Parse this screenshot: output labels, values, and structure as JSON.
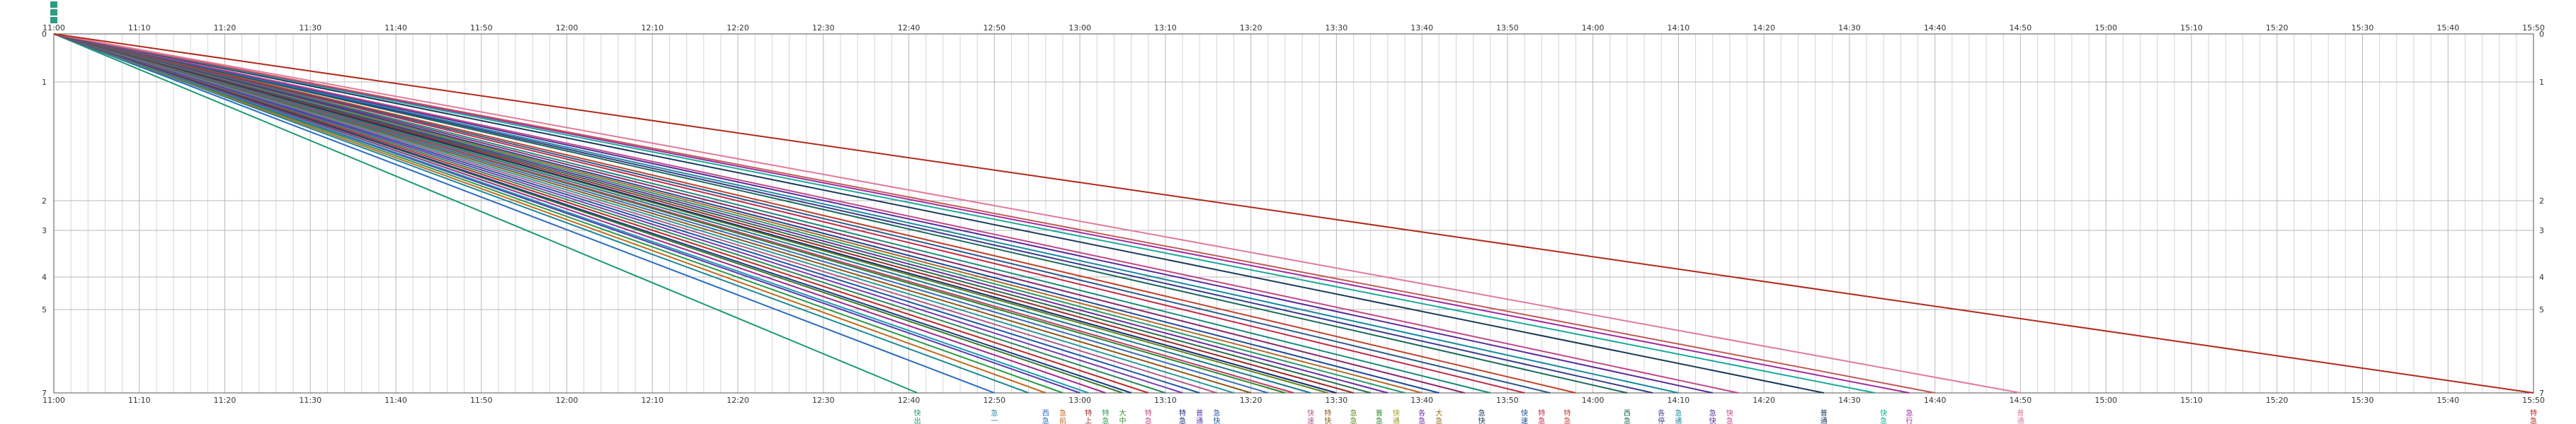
{
  "chart_data": {
    "type": "line",
    "title": "",
    "xlabel": "",
    "ylabel": "",
    "x_ticks": [
      "11:00",
      "11:10",
      "11:20",
      "11:30",
      "11:40",
      "11:50",
      "12:00",
      "12:10",
      "12:20",
      "12:30",
      "12:40",
      "12:50",
      "13:00",
      "13:10",
      "13:20",
      "13:30",
      "13:40",
      "13:50",
      "14:00",
      "14:10",
      "14:20",
      "14:30",
      "14:40",
      "14:50",
      "15:00",
      "15:10",
      "15:20",
      "15:30",
      "15:40",
      "15:50"
    ],
    "y_ticks": [
      "0",
      "1",
      "2",
      "3",
      "4",
      "5",
      "7"
    ],
    "xlim": [
      "11:00",
      "15:50"
    ],
    "grid": true,
    "start_marker_color": "#2e9c82",
    "series": [
      {
        "x": [
          "11:00",
          "12:41"
        ],
        "y": [
          0,
          7
        ],
        "color": "#1a9a70"
      },
      {
        "x": [
          "11:00",
          "12:50"
        ],
        "y": [
          0,
          7
        ],
        "color": "#2a6cc0"
      },
      {
        "x": [
          "11:00",
          "12:54"
        ],
        "y": [
          0,
          7
        ],
        "color": "#1a8a9a"
      },
      {
        "x": [
          "11:00",
          "12:56"
        ],
        "y": [
          0,
          7
        ],
        "color": "#c06a20"
      },
      {
        "x": [
          "11:00",
          "12:58"
        ],
        "y": [
          0,
          7
        ],
        "color": "#2a9a4a"
      },
      {
        "x": [
          "11:00",
          "13:00"
        ],
        "y": [
          0,
          7
        ],
        "color": "#5a3ab0"
      },
      {
        "x": [
          "11:00",
          "13:01"
        ],
        "y": [
          0,
          7
        ],
        "color": "#1a9ab0"
      },
      {
        "x": [
          "11:00",
          "13:03"
        ],
        "y": [
          0,
          7
        ],
        "color": "#a02a8a"
      },
      {
        "x": [
          "11:00",
          "13:05"
        ],
        "y": [
          0,
          7
        ],
        "color": "#3a7a2a"
      },
      {
        "x": [
          "11:00",
          "13:06"
        ],
        "y": [
          0,
          7
        ],
        "color": "#1a3a8a"
      },
      {
        "x": [
          "11:00",
          "13:08"
        ],
        "y": [
          0,
          7
        ],
        "color": "#c02a2a"
      },
      {
        "x": [
          "11:00",
          "13:10"
        ],
        "y": [
          0,
          7
        ],
        "color": "#2a8a5a"
      },
      {
        "x": [
          "11:00",
          "13:12"
        ],
        "y": [
          0,
          7
        ],
        "color": "#7a3ab0"
      },
      {
        "x": [
          "11:00",
          "13:14"
        ],
        "y": [
          0,
          7
        ],
        "color": "#1a5aa0"
      },
      {
        "x": [
          "11:00",
          "13:16"
        ],
        "y": [
          0,
          7
        ],
        "color": "#b05a8a"
      },
      {
        "x": [
          "11:00",
          "13:18"
        ],
        "y": [
          0,
          7
        ],
        "color": "#2a9a9a"
      },
      {
        "x": [
          "11:00",
          "13:20"
        ],
        "y": [
          0,
          7
        ],
        "color": "#8a5a1a"
      },
      {
        "x": [
          "11:00",
          "13:22"
        ],
        "y": [
          0,
          7
        ],
        "color": "#3a6aba"
      },
      {
        "x": [
          "11:00",
          "13:24"
        ],
        "y": [
          0,
          7
        ],
        "color": "#2a8a2a"
      },
      {
        "x": [
          "11:00",
          "13:25"
        ],
        "y": [
          0,
          7
        ],
        "color": "#c03a6a"
      },
      {
        "x": [
          "11:00",
          "13:27"
        ],
        "y": [
          0,
          7
        ],
        "color": "#1a7a8a"
      },
      {
        "x": [
          "11:00",
          "13:29"
        ],
        "y": [
          0,
          7
        ],
        "color": "#5a8a1a"
      },
      {
        "x": [
          "11:00",
          "13:30"
        ],
        "y": [
          0,
          7
        ],
        "color": "#1a2a7a"
      },
      {
        "x": [
          "11:00",
          "13:32"
        ],
        "y": [
          0,
          7
        ],
        "color": "#9a2a2a"
      },
      {
        "x": [
          "11:00",
          "13:34"
        ],
        "y": [
          0,
          7
        ],
        "color": "#2a6a4a"
      },
      {
        "x": [
          "11:00",
          "13:36"
        ],
        "y": [
          0,
          7
        ],
        "color": "#6a2aa0"
      },
      {
        "x": [
          "11:00",
          "13:38"
        ],
        "y": [
          0,
          7
        ],
        "color": "#2a9a6a"
      },
      {
        "x": [
          "11:00",
          "13:40"
        ],
        "y": [
          0,
          7
        ],
        "color": "#b06a2a"
      },
      {
        "x": [
          "11:00",
          "13:42"
        ],
        "y": [
          0,
          7
        ],
        "color": "#1a4a9a"
      },
      {
        "x": [
          "11:00",
          "13:45"
        ],
        "y": [
          0,
          7
        ],
        "color": "#8a2a6a"
      },
      {
        "x": [
          "11:00",
          "13:48"
        ],
        "y": [
          0,
          7
        ],
        "color": "#1a8a7a"
      },
      {
        "x": [
          "11:00",
          "13:52"
        ],
        "y": [
          0,
          7
        ],
        "color": "#c02a4a"
      },
      {
        "x": [
          "11:00",
          "13:55"
        ],
        "y": [
          0,
          7
        ],
        "color": "#2a5a8a"
      },
      {
        "x": [
          "11:00",
          "13:58"
        ],
        "y": [
          0,
          7
        ],
        "color": "#c0402a"
      },
      {
        "x": [
          "11:00",
          "14:04"
        ],
        "y": [
          0,
          7
        ],
        "color": "#1a6a5a"
      },
      {
        "x": [
          "11:00",
          "14:07"
        ],
        "y": [
          0,
          7
        ],
        "color": "#3a3a8a"
      },
      {
        "x": [
          "11:00",
          "14:10"
        ],
        "y": [
          0,
          7
        ],
        "color": "#1a8aa0"
      },
      {
        "x": [
          "11:00",
          "14:14"
        ],
        "y": [
          0,
          7
        ],
        "color": "#5a2a9a"
      },
      {
        "x": [
          "11:00",
          "14:17"
        ],
        "y": [
          0,
          7
        ],
        "color": "#c04a8a"
      },
      {
        "x": [
          "11:00",
          "14:27"
        ],
        "y": [
          0,
          7
        ],
        "color": "#1a3a5a"
      },
      {
        "x": [
          "11:00",
          "14:33"
        ],
        "y": [
          0,
          7
        ],
        "color": "#1aaa9a"
      },
      {
        "x": [
          "11:00",
          "14:37"
        ],
        "y": [
          0,
          7
        ],
        "color": "#a02aa0"
      },
      {
        "x": [
          "11:00",
          "14:40"
        ],
        "y": [
          0,
          7
        ],
        "color": "#c05a5a"
      },
      {
        "x": [
          "11:00",
          "14:50"
        ],
        "y": [
          0,
          7
        ],
        "color": "#e07a9a"
      },
      {
        "x": [
          "11:00",
          "15:50"
        ],
        "y": [
          0,
          7
        ],
        "color": "#b02a1a"
      }
    ],
    "bottom_labels": [
      {
        "x": "12:41",
        "text": "快\n出\n巡",
        "color": "#1a9a70"
      },
      {
        "x": "12:50",
        "text": "急\n一",
        "color": "#2a8aa0"
      },
      {
        "x": "12:56",
        "text": "西\n急\n急",
        "color": "#2a6cc0"
      },
      {
        "x": "12:58",
        "text": "急\n前\n行",
        "color": "#c06a20"
      },
      {
        "x": "13:01",
        "text": "特\n上\n行",
        "color": "#a02a2a"
      },
      {
        "x": "13:03",
        "text": "特\n急\n行",
        "color": "#2a9a4a"
      },
      {
        "x": "13:05",
        "text": "大\n中\n各",
        "color": "#3a9a2a"
      },
      {
        "x": "13:08",
        "text": "特\n急",
        "color": "#c04a8a"
      },
      {
        "x": "13:12",
        "text": "特\n急\n快",
        "color": "#1a2a7a"
      },
      {
        "x": "13:14",
        "text": "普\n通\n急",
        "color": "#5a3ab0"
      },
      {
        "x": "13:16",
        "text": "急\n快\n普",
        "color": "#1a5aa0"
      },
      {
        "x": "13:27",
        "text": "快\n速\n急",
        "color": "#b05a8a"
      },
      {
        "x": "13:29",
        "text": "特\n快",
        "color": "#8a5a1a"
      },
      {
        "x": "13:32",
        "text": "急\n急\n急",
        "color": "#5a8a1a"
      },
      {
        "x": "13:35",
        "text": "普\n急\n急",
        "color": "#2a8a2a"
      },
      {
        "x": "13:37",
        "text": "快\n通",
        "color": "#9a9a2a"
      },
      {
        "x": "13:40",
        "text": "各\n急\n行",
        "color": "#6a2aa0"
      },
      {
        "x": "13:42",
        "text": "大\n急\n急",
        "color": "#9a6a1a"
      },
      {
        "x": "13:47",
        "text": "急\n快",
        "color": "#1a3a5a"
      },
      {
        "x": "13:52",
        "text": "快\n速\n急",
        "color": "#1a4a9a"
      },
      {
        "x": "13:54",
        "text": "特\n急\n行",
        "color": "#c02a4a"
      },
      {
        "x": "13:57",
        "text": "特\n急",
        "color": "#c0402a"
      },
      {
        "x": "14:04",
        "text": "西\n急\n快",
        "color": "#1a6a5a"
      },
      {
        "x": "14:08",
        "text": "各\n停",
        "color": "#3a3a8a"
      },
      {
        "x": "14:10",
        "text": "急\n通",
        "color": "#1a8aa0"
      },
      {
        "x": "14:14",
        "text": "急\n快\n行",
        "color": "#5a2a9a"
      },
      {
        "x": "14:16",
        "text": "快\n急",
        "color": "#c04a8a"
      },
      {
        "x": "14:27",
        "text": "普\n通\n急",
        "color": "#1a3a5a"
      },
      {
        "x": "14:34",
        "text": "快\n急\n急",
        "color": "#1aaa9a"
      },
      {
        "x": "14:37",
        "text": "急\n行",
        "color": "#a02aa0"
      },
      {
        "x": "14:50",
        "text": "普\n通",
        "color": "#e07a9a"
      },
      {
        "x": "15:50",
        "text": "特\n急\n行",
        "color": "#b02a1a"
      }
    ]
  }
}
